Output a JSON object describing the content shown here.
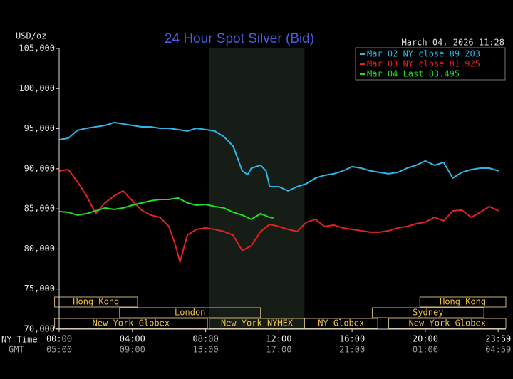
{
  "chart_data": {
    "type": "line",
    "title": "24 Hour Spot Silver (Bid)",
    "timestamp": "March 04, 2026 11:28",
    "ylabel": "USD/oz",
    "x_row_labels": [
      "NY Time",
      "GMT"
    ],
    "xlim": [
      0,
      24.4
    ],
    "ylim": [
      70000,
      105000
    ],
    "xticks": [
      {
        "value": 0,
        "label": "00:00"
      },
      {
        "value": 4,
        "label": "04:00"
      },
      {
        "value": 8,
        "label": "08:00"
      },
      {
        "value": 12,
        "label": "12:00"
      },
      {
        "value": 16,
        "label": "16:00"
      },
      {
        "value": 20,
        "label": "20:00"
      },
      {
        "value": 23.98,
        "label": "23:59"
      }
    ],
    "x2ticks": [
      {
        "value": 0,
        "label": "05:00"
      },
      {
        "value": 4,
        "label": "09:00"
      },
      {
        "value": 8,
        "label": "13:00"
      },
      {
        "value": 12,
        "label": "17:00"
      },
      {
        "value": 16,
        "label": "21:00"
      },
      {
        "value": 20,
        "label": "01:00"
      },
      {
        "value": 23.98,
        "label": "04:59"
      }
    ],
    "yticks": [
      {
        "value": 70000,
        "label": "70,000"
      },
      {
        "value": 75000,
        "label": "75,000"
      },
      {
        "value": 80000,
        "label": "80,000"
      },
      {
        "value": 85000,
        "label": "85,000"
      },
      {
        "value": 90000,
        "label": "90,000"
      },
      {
        "value": 95000,
        "label": "95,000"
      },
      {
        "value": 100000,
        "label": "100,000"
      },
      {
        "value": 105000,
        "label": "105,000"
      }
    ],
    "highlight": {
      "start": 8.2,
      "end": 13.4,
      "color": "#161d16"
    },
    "sessions": [
      [
        {
          "label": "Hong Kong",
          "start": -0.25,
          "end": 4.28
        },
        {
          "label": "Hong Kong",
          "start": 19.7,
          "end": 24.4
        }
      ],
      [
        {
          "label": "London",
          "start": 3.3,
          "end": 11.0
        },
        {
          "label": "Sydney",
          "start": 17.1,
          "end": 23.2
        }
      ],
      [
        {
          "label": "New York Globex",
          "start": -0.25,
          "end": 8.1
        },
        {
          "label": "New York NYMEX",
          "start": 8.2,
          "end": 13.4
        },
        {
          "label": "NY Globex",
          "start": 13.4,
          "end": 17.4
        },
        {
          "label": "New York Globex",
          "start": 18.0,
          "end": 24.4
        }
      ]
    ],
    "series": [
      {
        "name": "Mar 02 NY close 89.203",
        "color": "#2fb4e6",
        "x": [
          0,
          0.5,
          1,
          1.5,
          2,
          2.5,
          3,
          3.5,
          4,
          4.5,
          5,
          5.5,
          6,
          6.5,
          7,
          7.5,
          8,
          8.5,
          9,
          9.5,
          10,
          10.3,
          10.5,
          11,
          11.3,
          11.5,
          12,
          12.5,
          13,
          13.5,
          14,
          14.5,
          15,
          15.5,
          16,
          16.5,
          17,
          17.5,
          18,
          18.5,
          19,
          19.5,
          20,
          20.5,
          21,
          21.5,
          22,
          22.5,
          23,
          23.5,
          24
        ],
        "values": [
          93630,
          93810,
          94790,
          95050,
          95230,
          95410,
          95770,
          95590,
          95410,
          95230,
          95230,
          95050,
          95050,
          94880,
          94700,
          95050,
          94880,
          94700,
          93990,
          92830,
          89730,
          89280,
          90080,
          90440,
          89730,
          87770,
          87770,
          87240,
          87770,
          88130,
          88840,
          89190,
          89370,
          89730,
          90260,
          90080,
          89730,
          89550,
          89370,
          89550,
          90080,
          90440,
          90970,
          90440,
          90790,
          88840,
          89550,
          89900,
          90080,
          90080,
          89730
        ]
      },
      {
        "name": "Mar 03 NY close 81.925",
        "color": "#e02222",
        "x": [
          0,
          0.5,
          1,
          1.5,
          2,
          2.5,
          3,
          3.5,
          4,
          4.5,
          5,
          5.5,
          6,
          6.3,
          6.6,
          7,
          7.5,
          8,
          8.5,
          9,
          9.5,
          10,
          10.5,
          11,
          11.5,
          12,
          12.5,
          13,
          13.5,
          14,
          14.5,
          15,
          15.5,
          16,
          16.5,
          17,
          17.5,
          18,
          18.5,
          19,
          19.5,
          20,
          20.5,
          21,
          21.5,
          22,
          22.5,
          23,
          23.5,
          24
        ],
        "values": [
          89730,
          89900,
          88390,
          86620,
          84400,
          85730,
          86620,
          87240,
          86000,
          84840,
          84220,
          83950,
          82800,
          80850,
          78360,
          81730,
          82440,
          82620,
          82440,
          82180,
          81730,
          79780,
          80400,
          82180,
          83070,
          82800,
          82440,
          82180,
          83330,
          83690,
          82800,
          82980,
          82620,
          82440,
          82270,
          82090,
          82090,
          82270,
          82620,
          82800,
          83150,
          83330,
          83950,
          83510,
          84750,
          84840,
          83950,
          84580,
          85290,
          84750
        ]
      },
      {
        "name": "Mar 04 Last 83.495",
        "color": "#22dd22",
        "x": [
          0,
          0.5,
          1,
          1.5,
          2,
          2.5,
          3,
          3.5,
          4,
          4.5,
          5,
          5.5,
          6,
          6.5,
          7,
          7.5,
          8,
          8.5,
          9,
          9.5,
          10,
          10.5,
          11,
          11.5,
          11.7
        ],
        "values": [
          84660,
          84580,
          84220,
          84400,
          84750,
          85110,
          84930,
          85110,
          85460,
          85730,
          86000,
          86170,
          86170,
          86350,
          85730,
          85460,
          85550,
          85290,
          85110,
          84580,
          84220,
          83690,
          84400,
          83950,
          83870
        ]
      }
    ]
  }
}
